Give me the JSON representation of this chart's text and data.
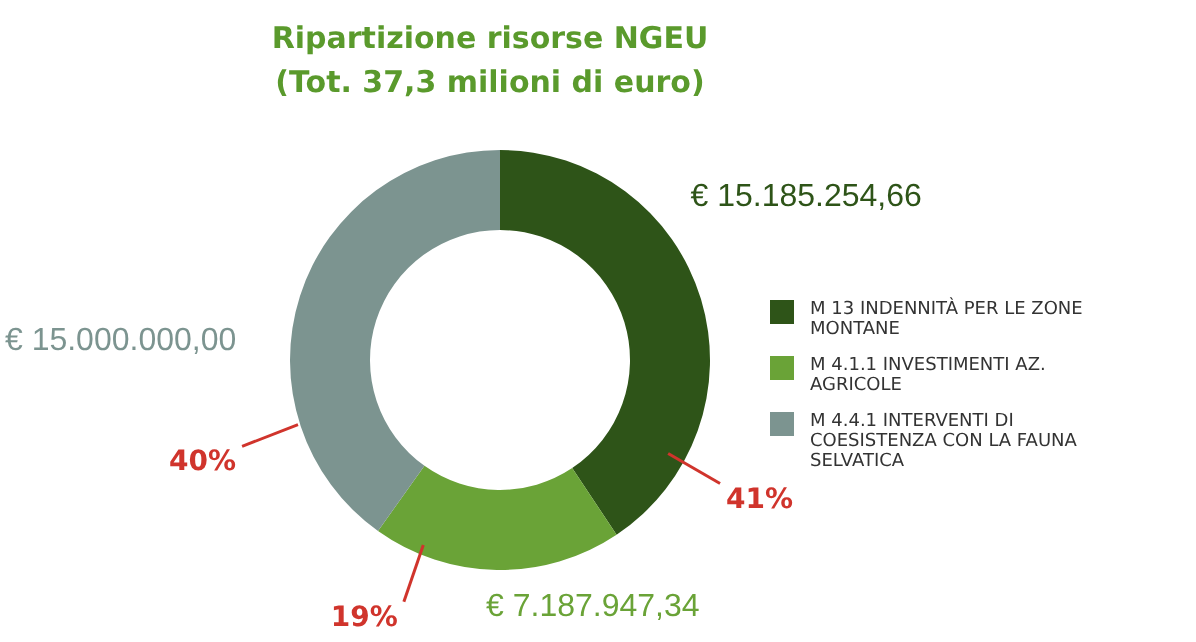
{
  "chart_data": {
    "type": "donut",
    "title": "Ripartizione risorse NGEU",
    "subtitle": "(Tot. 37,3 milioni di euro)",
    "categories": [
      "M 13 INDENNITÀ PER LE ZONE MONTANE",
      "M 4.1.1 INVESTIMENTI AZ. AGRICOLE",
      "M 4.4.1 INTERVENTI DI COESISTENZA CON LA FAUNA SELVATICA"
    ],
    "values": [
      15185254.66,
      7187947.34,
      15000000.0
    ],
    "colors": [
      "#2e5418",
      "#6aa337",
      "#7c9490"
    ],
    "value_labels": [
      "€ 15.185.254,66",
      "€ 7.187.947,34",
      "€ 15.000.000,00"
    ],
    "annotations": [
      "41%",
      "19%",
      "40%"
    ],
    "legend": "right"
  }
}
